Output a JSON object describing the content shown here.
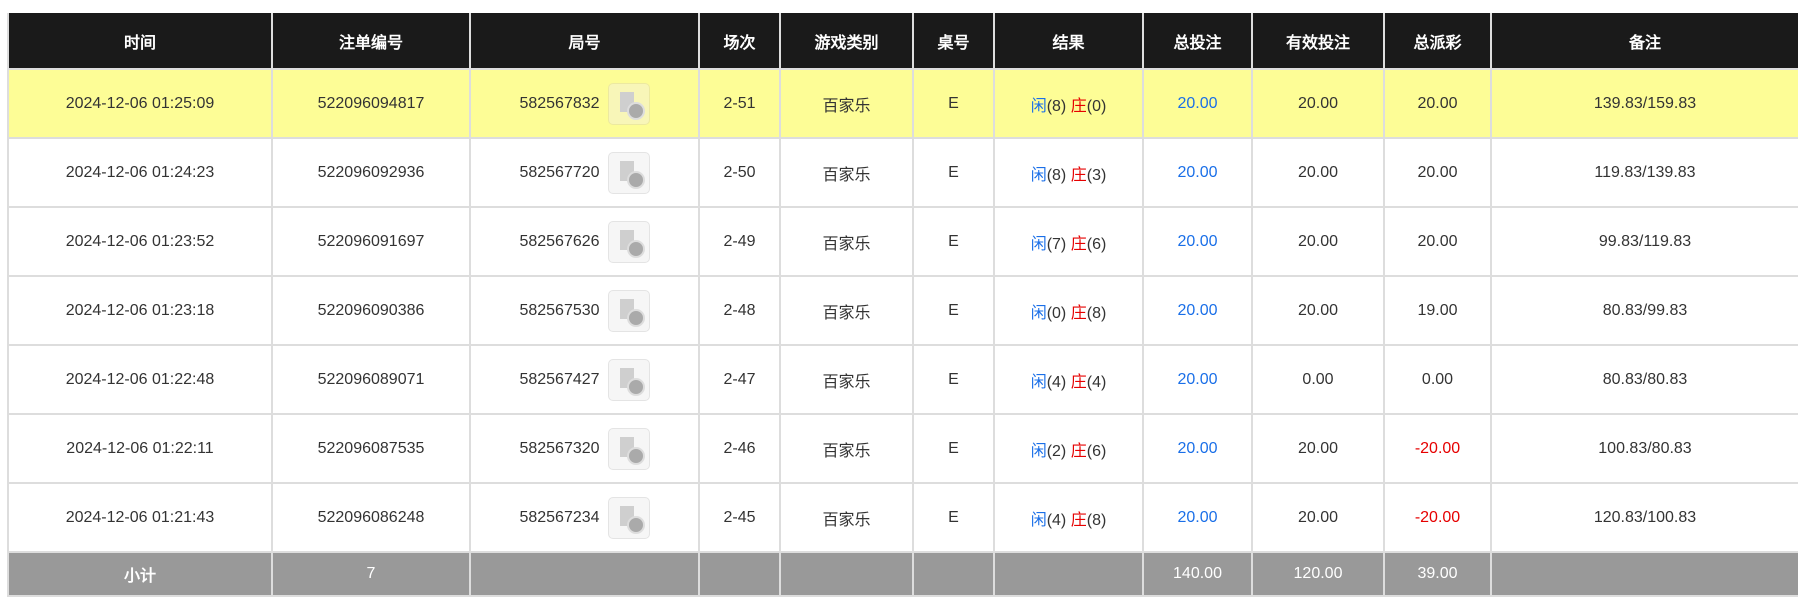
{
  "headers": [
    "时间",
    "注单编号",
    "局号",
    "场次",
    "游戏类别",
    "桌号",
    "结果",
    "总投注",
    "有效投注",
    "总派彩",
    "备注"
  ],
  "rows": [
    {
      "time": "2024-12-06 01:25:09",
      "bet_id": "522096094817",
      "round": "582567832",
      "session": "2-51",
      "game": "百家乐",
      "table": "E",
      "player_label": "闲",
      "player": "(8)",
      "banker_label": "庄",
      "banker": "(0)",
      "total_bet": "20.00",
      "valid_bet": "20.00",
      "payout": "20.00",
      "payout_negative": false,
      "note": "139.83/159.83",
      "highlight": true
    },
    {
      "time": "2024-12-06 01:24:23",
      "bet_id": "522096092936",
      "round": "582567720",
      "session": "2-50",
      "game": "百家乐",
      "table": "E",
      "player_label": "闲",
      "player": "(8)",
      "banker_label": "庄",
      "banker": "(3)",
      "total_bet": "20.00",
      "valid_bet": "20.00",
      "payout": "20.00",
      "payout_negative": false,
      "note": "119.83/139.83"
    },
    {
      "time": "2024-12-06 01:23:52",
      "bet_id": "522096091697",
      "round": "582567626",
      "session": "2-49",
      "game": "百家乐",
      "table": "E",
      "player_label": "闲",
      "player": "(7)",
      "banker_label": "庄",
      "banker": "(6)",
      "total_bet": "20.00",
      "valid_bet": "20.00",
      "payout": "20.00",
      "payout_negative": false,
      "note": "99.83/119.83"
    },
    {
      "time": "2024-12-06 01:23:18",
      "bet_id": "522096090386",
      "round": "582567530",
      "session": "2-48",
      "game": "百家乐",
      "table": "E",
      "player_label": "闲",
      "player": "(0)",
      "banker_label": "庄",
      "banker": "(8)",
      "total_bet": "20.00",
      "valid_bet": "20.00",
      "payout": "19.00",
      "payout_negative": false,
      "note": "80.83/99.83"
    },
    {
      "time": "2024-12-06 01:22:48",
      "bet_id": "522096089071",
      "round": "582567427",
      "session": "2-47",
      "game": "百家乐",
      "table": "E",
      "player_label": "闲",
      "player": "(4)",
      "banker_label": "庄",
      "banker": "(4)",
      "total_bet": "20.00",
      "valid_bet": "0.00",
      "payout": "0.00",
      "payout_negative": false,
      "note": "80.83/80.83"
    },
    {
      "time": "2024-12-06 01:22:11",
      "bet_id": "522096087535",
      "round": "582567320",
      "session": "2-46",
      "game": "百家乐",
      "table": "E",
      "player_label": "闲",
      "player": "(2)",
      "banker_label": "庄",
      "banker": "(6)",
      "total_bet": "20.00",
      "valid_bet": "20.00",
      "payout": "-20.00",
      "payout_negative": true,
      "note": "100.83/80.83"
    },
    {
      "time": "2024-12-06 01:21:43",
      "bet_id": "522096086248",
      "round": "582567234",
      "session": "2-45",
      "game": "百家乐",
      "table": "E",
      "player_label": "闲",
      "player": "(4)",
      "banker_label": "庄",
      "banker": "(8)",
      "total_bet": "20.00",
      "valid_bet": "20.00",
      "payout": "-20.00",
      "payout_negative": true,
      "note": "120.83/100.83"
    }
  ],
  "subtotal": {
    "label": "小计",
    "count": "7",
    "total_bet": "140.00",
    "valid_bet": "120.00",
    "payout": "39.00"
  },
  "colors": {
    "header_bg": "#1a1a1a",
    "highlight_row": "#fdfd96",
    "subtotal_bg": "#999999",
    "player": "#1a6fe8",
    "banker": "#e60000"
  }
}
